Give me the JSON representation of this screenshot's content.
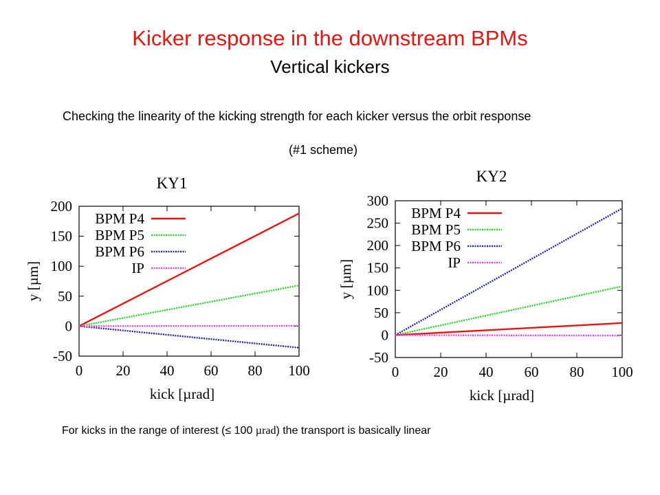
{
  "slide": {
    "title": "Kicker response in the downstream BPMs",
    "subtitle": "Vertical kickers",
    "description": "Checking the linearity of the kicking strength for each kicker versus the orbit response",
    "scheme": "(#1 scheme)",
    "footnote_before": "For kicks in the range of interest (≤ 100 ",
    "footnote_unit": "µrad",
    "footnote_after": ") the transport is basically linear"
  },
  "colors": {
    "title": "#e8150f",
    "bpm_p4": "#e8150f",
    "bpm_p5": "#22dd22",
    "bpm_p6": "#2222bb",
    "ip": "#ee44ee"
  },
  "chart_data": [
    {
      "type": "line",
      "title": "KY1",
      "xlabel": "kick [µrad]",
      "ylabel": "y [µm]",
      "xlim": [
        0,
        100
      ],
      "ylim": [
        -50,
        200
      ],
      "xticks": [
        0,
        20,
        40,
        60,
        80,
        100
      ],
      "yticks": [
        -50,
        0,
        50,
        100,
        150,
        200
      ],
      "legend_position": "top-left",
      "grid": false,
      "series": [
        {
          "name": "BPM P4",
          "x": [
            0,
            100
          ],
          "y": [
            0,
            188
          ],
          "color": "#e8150f",
          "style": "solid"
        },
        {
          "name": "BPM P5",
          "x": [
            0,
            100
          ],
          "y": [
            0,
            68
          ],
          "color": "#22dd22",
          "style": "dotted"
        },
        {
          "name": "BPM P6",
          "x": [
            0,
            100
          ],
          "y": [
            0,
            -36
          ],
          "color": "#2222bb",
          "style": "dotted"
        },
        {
          "name": "IP",
          "x": [
            0,
            100
          ],
          "y": [
            0,
            0.5
          ],
          "color": "#ee44ee",
          "style": "dotted"
        }
      ]
    },
    {
      "type": "line",
      "title": "KY2",
      "xlabel": "kick [µrad]",
      "ylabel": "y [µm]",
      "xlim": [
        0,
        100
      ],
      "ylim": [
        -50,
        300
      ],
      "xticks": [
        0,
        20,
        40,
        60,
        80,
        100
      ],
      "yticks": [
        -50,
        0,
        50,
        100,
        150,
        200,
        250,
        300
      ],
      "legend_position": "top-left",
      "grid": false,
      "series": [
        {
          "name": "BPM P4",
          "x": [
            0,
            100
          ],
          "y": [
            0,
            27
          ],
          "color": "#e8150f",
          "style": "solid"
        },
        {
          "name": "BPM P5",
          "x": [
            0,
            100
          ],
          "y": [
            0,
            109
          ],
          "color": "#22dd22",
          "style": "dotted"
        },
        {
          "name": "BPM P6",
          "x": [
            0,
            100
          ],
          "y": [
            0,
            283
          ],
          "color": "#2222bb",
          "style": "dotted"
        },
        {
          "name": "IP",
          "x": [
            0,
            100
          ],
          "y": [
            0,
            -1
          ],
          "color": "#ee44ee",
          "style": "dotted"
        }
      ]
    }
  ]
}
